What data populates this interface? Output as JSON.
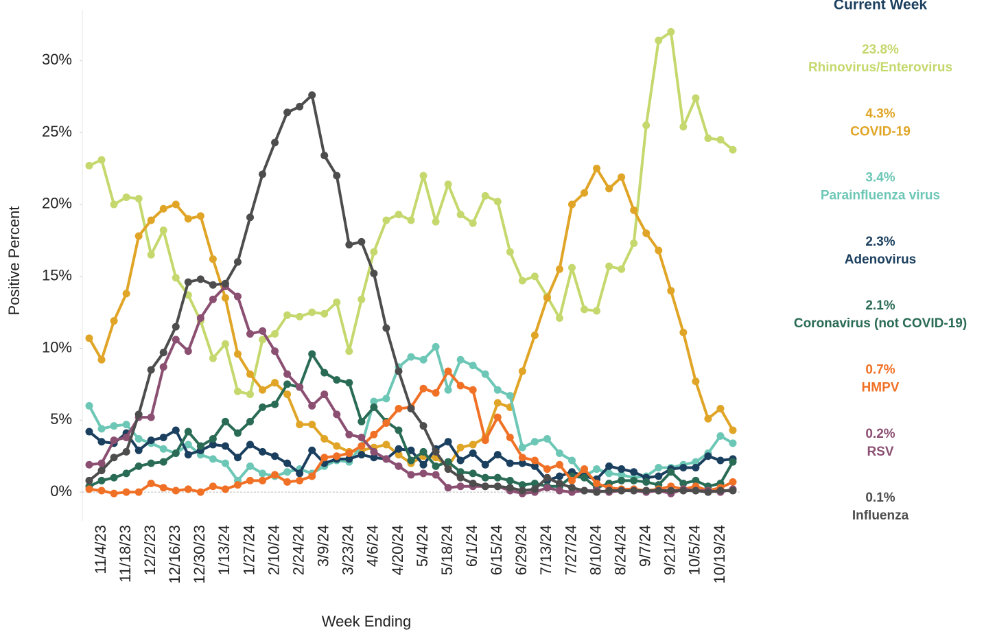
{
  "chart_data": {
    "type": "line",
    "x_label": "Week Ending",
    "y_label": "Positive Percent",
    "legend_title": "Current Week",
    "categories": [
      null,
      "11/4/23",
      null,
      "11/18/23",
      null,
      "12/2/23",
      null,
      "12/16/23",
      null,
      "12/30/23",
      null,
      "1/13/24",
      null,
      "1/27/24",
      null,
      "2/10/24",
      null,
      "2/24/24",
      null,
      "3/9/24",
      null,
      "3/23/24",
      null,
      "4/6/24",
      null,
      "4/20/24",
      null,
      "5/4/24",
      null,
      "5/18/24",
      null,
      "6/1/24",
      null,
      "6/15/24",
      null,
      "6/29/24",
      null,
      "7/13/24",
      null,
      "7/27/24",
      null,
      "8/10/24",
      null,
      "8/24/24",
      null,
      "9/7/24",
      null,
      "9/21/24",
      null,
      "10/5/24",
      null,
      "10/19/24",
      null
    ],
    "ylim": [
      -2,
      33.5
    ],
    "yticks": [
      {
        "value": 0,
        "label": "0%"
      },
      {
        "value": 5,
        "label": "5%"
      },
      {
        "value": 10,
        "label": "10%"
      },
      {
        "value": 15,
        "label": "15%"
      },
      {
        "value": 20,
        "label": "20%"
      },
      {
        "value": 25,
        "label": "25%"
      },
      {
        "value": 30,
        "label": "30%"
      }
    ],
    "series": [
      {
        "name": "Rhinovirus/Enterovirus",
        "color": "#c5d86d",
        "current_week_label": "23.8%",
        "values": [
          22.7,
          23.1,
          20.0,
          20.5,
          20.4,
          16.5,
          18.2,
          14.9,
          13.7,
          11.9,
          9.3,
          10.3,
          7.0,
          6.8,
          10.6,
          11.0,
          12.3,
          12.2,
          12.5,
          12.4,
          13.2,
          9.8,
          13.4,
          16.7,
          18.9,
          19.3,
          18.9,
          22.0,
          18.8,
          21.4,
          19.3,
          18.7,
          20.6,
          20.2,
          16.7,
          14.7,
          15.0,
          13.6,
          12.1,
          15.6,
          12.7,
          12.6,
          15.7,
          15.5,
          17.3,
          25.5,
          31.4,
          32.0,
          25.4,
          27.4,
          24.6,
          24.5,
          23.8
        ]
      },
      {
        "name": "COVID-19",
        "color": "#e0a526",
        "current_week_label": "4.3%",
        "values": [
          10.7,
          9.2,
          11.9,
          13.8,
          17.8,
          18.9,
          19.7,
          20.0,
          19.0,
          19.2,
          16.2,
          13.5,
          9.6,
          8.2,
          7.1,
          7.6,
          6.8,
          4.7,
          4.7,
          3.7,
          3.2,
          2.8,
          2.9,
          3.1,
          3.3,
          2.6,
          2.0,
          2.5,
          2.4,
          1.8,
          3.1,
          3.3,
          3.8,
          6.2,
          5.9,
          8.4,
          10.9,
          13.5,
          15.5,
          20.0,
          20.8,
          22.5,
          21.1,
          21.9,
          19.6,
          18.0,
          16.8,
          14.0,
          11.1,
          7.7,
          5.1,
          5.8,
          4.3
        ]
      },
      {
        "name": "Parainfluenza virus",
        "color": "#6dc7b6",
        "current_week_label": "3.4%",
        "values": [
          6.0,
          4.4,
          4.6,
          4.7,
          3.7,
          3.4,
          3.0,
          2.7,
          3.3,
          2.6,
          2.3,
          2.0,
          0.8,
          1.8,
          1.3,
          1.1,
          1.4,
          1.6,
          1.3,
          1.8,
          2.2,
          2.1,
          3.2,
          6.3,
          6.5,
          8.7,
          9.4,
          9.2,
          10.1,
          7.1,
          9.2,
          8.8,
          8.2,
          7.1,
          6.7,
          3.1,
          3.5,
          3.7,
          2.7,
          2.2,
          1.1,
          1.6,
          1.3,
          1.2,
          1.0,
          1.1,
          1.7,
          1.7,
          1.9,
          2.1,
          2.7,
          3.9,
          3.4
        ]
      },
      {
        "name": "Adenovirus",
        "color": "#1b3f5e",
        "current_week_label": "2.3%",
        "values": [
          4.2,
          3.5,
          3.4,
          4.1,
          2.9,
          3.6,
          3.8,
          4.3,
          2.6,
          2.9,
          3.3,
          3.2,
          2.4,
          3.3,
          2.8,
          2.5,
          2.0,
          1.3,
          2.9,
          2.0,
          2.3,
          2.3,
          2.6,
          2.4,
          2.3,
          3.0,
          2.9,
          1.9,
          3.0,
          3.5,
          2.2,
          2.7,
          1.9,
          2.6,
          2.0,
          2.0,
          1.8,
          0.8,
          1.1,
          1.4,
          1.1,
          0.9,
          1.8,
          1.6,
          1.4,
          1.0,
          1.1,
          1.6,
          1.7,
          1.7,
          2.5,
          2.2,
          2.3
        ]
      },
      {
        "name": "Coronavirus (not COVID-19)",
        "color": "#2a6b56",
        "current_week_label": "2.1%",
        "values": [
          0.4,
          0.8,
          1.0,
          1.3,
          1.8,
          2.0,
          2.1,
          2.7,
          4.2,
          3.2,
          3.7,
          4.9,
          4.1,
          4.9,
          5.9,
          6.1,
          7.5,
          7.3,
          9.6,
          8.3,
          7.8,
          7.6,
          4.9,
          5.9,
          4.9,
          4.3,
          2.2,
          2.8,
          1.8,
          2.1,
          1.4,
          1.3,
          1.0,
          1.0,
          0.8,
          0.5,
          0.6,
          0.4,
          0.4,
          1.1,
          1.0,
          0.3,
          0.6,
          0.8,
          0.8,
          0.7,
          0.5,
          1.4,
          0.6,
          0.8,
          0.4,
          0.6,
          2.1
        ]
      },
      {
        "name": "HMPV",
        "color": "#f07126",
        "current_week_label": "0.7%",
        "values": [
          0.2,
          0.1,
          -0.1,
          0.0,
          0.0,
          0.6,
          0.3,
          0.1,
          0.2,
          0.0,
          0.4,
          0.2,
          0.5,
          0.8,
          0.8,
          1.2,
          0.7,
          0.8,
          1.1,
          2.4,
          2.5,
          2.7,
          3.2,
          4.0,
          4.8,
          5.8,
          5.9,
          7.2,
          6.9,
          8.4,
          7.4,
          7.1,
          3.6,
          5.2,
          3.8,
          2.4,
          2.2,
          1.6,
          1.9,
          0.8,
          1.6,
          0.6,
          0.3,
          0.2,
          0.2,
          0.1,
          0.2,
          0.4,
          0.2,
          0.4,
          0.1,
          0.3,
          0.7
        ]
      },
      {
        "name": "RSV",
        "color": "#8b4f72",
        "current_week_label": "0.2%",
        "values": [
          1.9,
          2.0,
          3.6,
          3.8,
          5.2,
          5.2,
          8.7,
          10.6,
          9.8,
          12.1,
          13.4,
          14.3,
          13.6,
          11.0,
          11.2,
          9.8,
          8.2,
          7.3,
          6.0,
          6.8,
          5.4,
          4.0,
          3.8,
          2.8,
          2.3,
          1.8,
          1.2,
          1.3,
          1.2,
          0.3,
          0.4,
          0.4,
          0.4,
          0.4,
          0.1,
          -0.1,
          0.0,
          0.3,
          0.1,
          0.0,
          0.1,
          0.1,
          0.0,
          0.1,
          0.1,
          0.0,
          0.1,
          -0.1,
          0.2,
          0.1,
          0.1,
          0.0,
          0.2
        ]
      },
      {
        "name": "Influenza",
        "color": "#4d4d4d",
        "current_week_label": "0.1%",
        "values": [
          0.8,
          1.5,
          2.4,
          2.8,
          5.4,
          8.5,
          9.7,
          11.5,
          14.6,
          14.8,
          14.4,
          14.5,
          16.0,
          19.1,
          22.1,
          24.3,
          26.4,
          26.8,
          27.6,
          23.4,
          22.0,
          17.2,
          17.4,
          15.2,
          11.4,
          8.4,
          5.8,
          4.6,
          2.8,
          1.6,
          1.0,
          0.6,
          0.4,
          0.4,
          0.3,
          0.1,
          0.2,
          1.0,
          0.6,
          0.3,
          0.1,
          0.0,
          0.1,
          0.1,
          0.1,
          0.1,
          0.1,
          0.1,
          0.1,
          0.1,
          0.0,
          0.1,
          0.1
        ]
      }
    ]
  }
}
